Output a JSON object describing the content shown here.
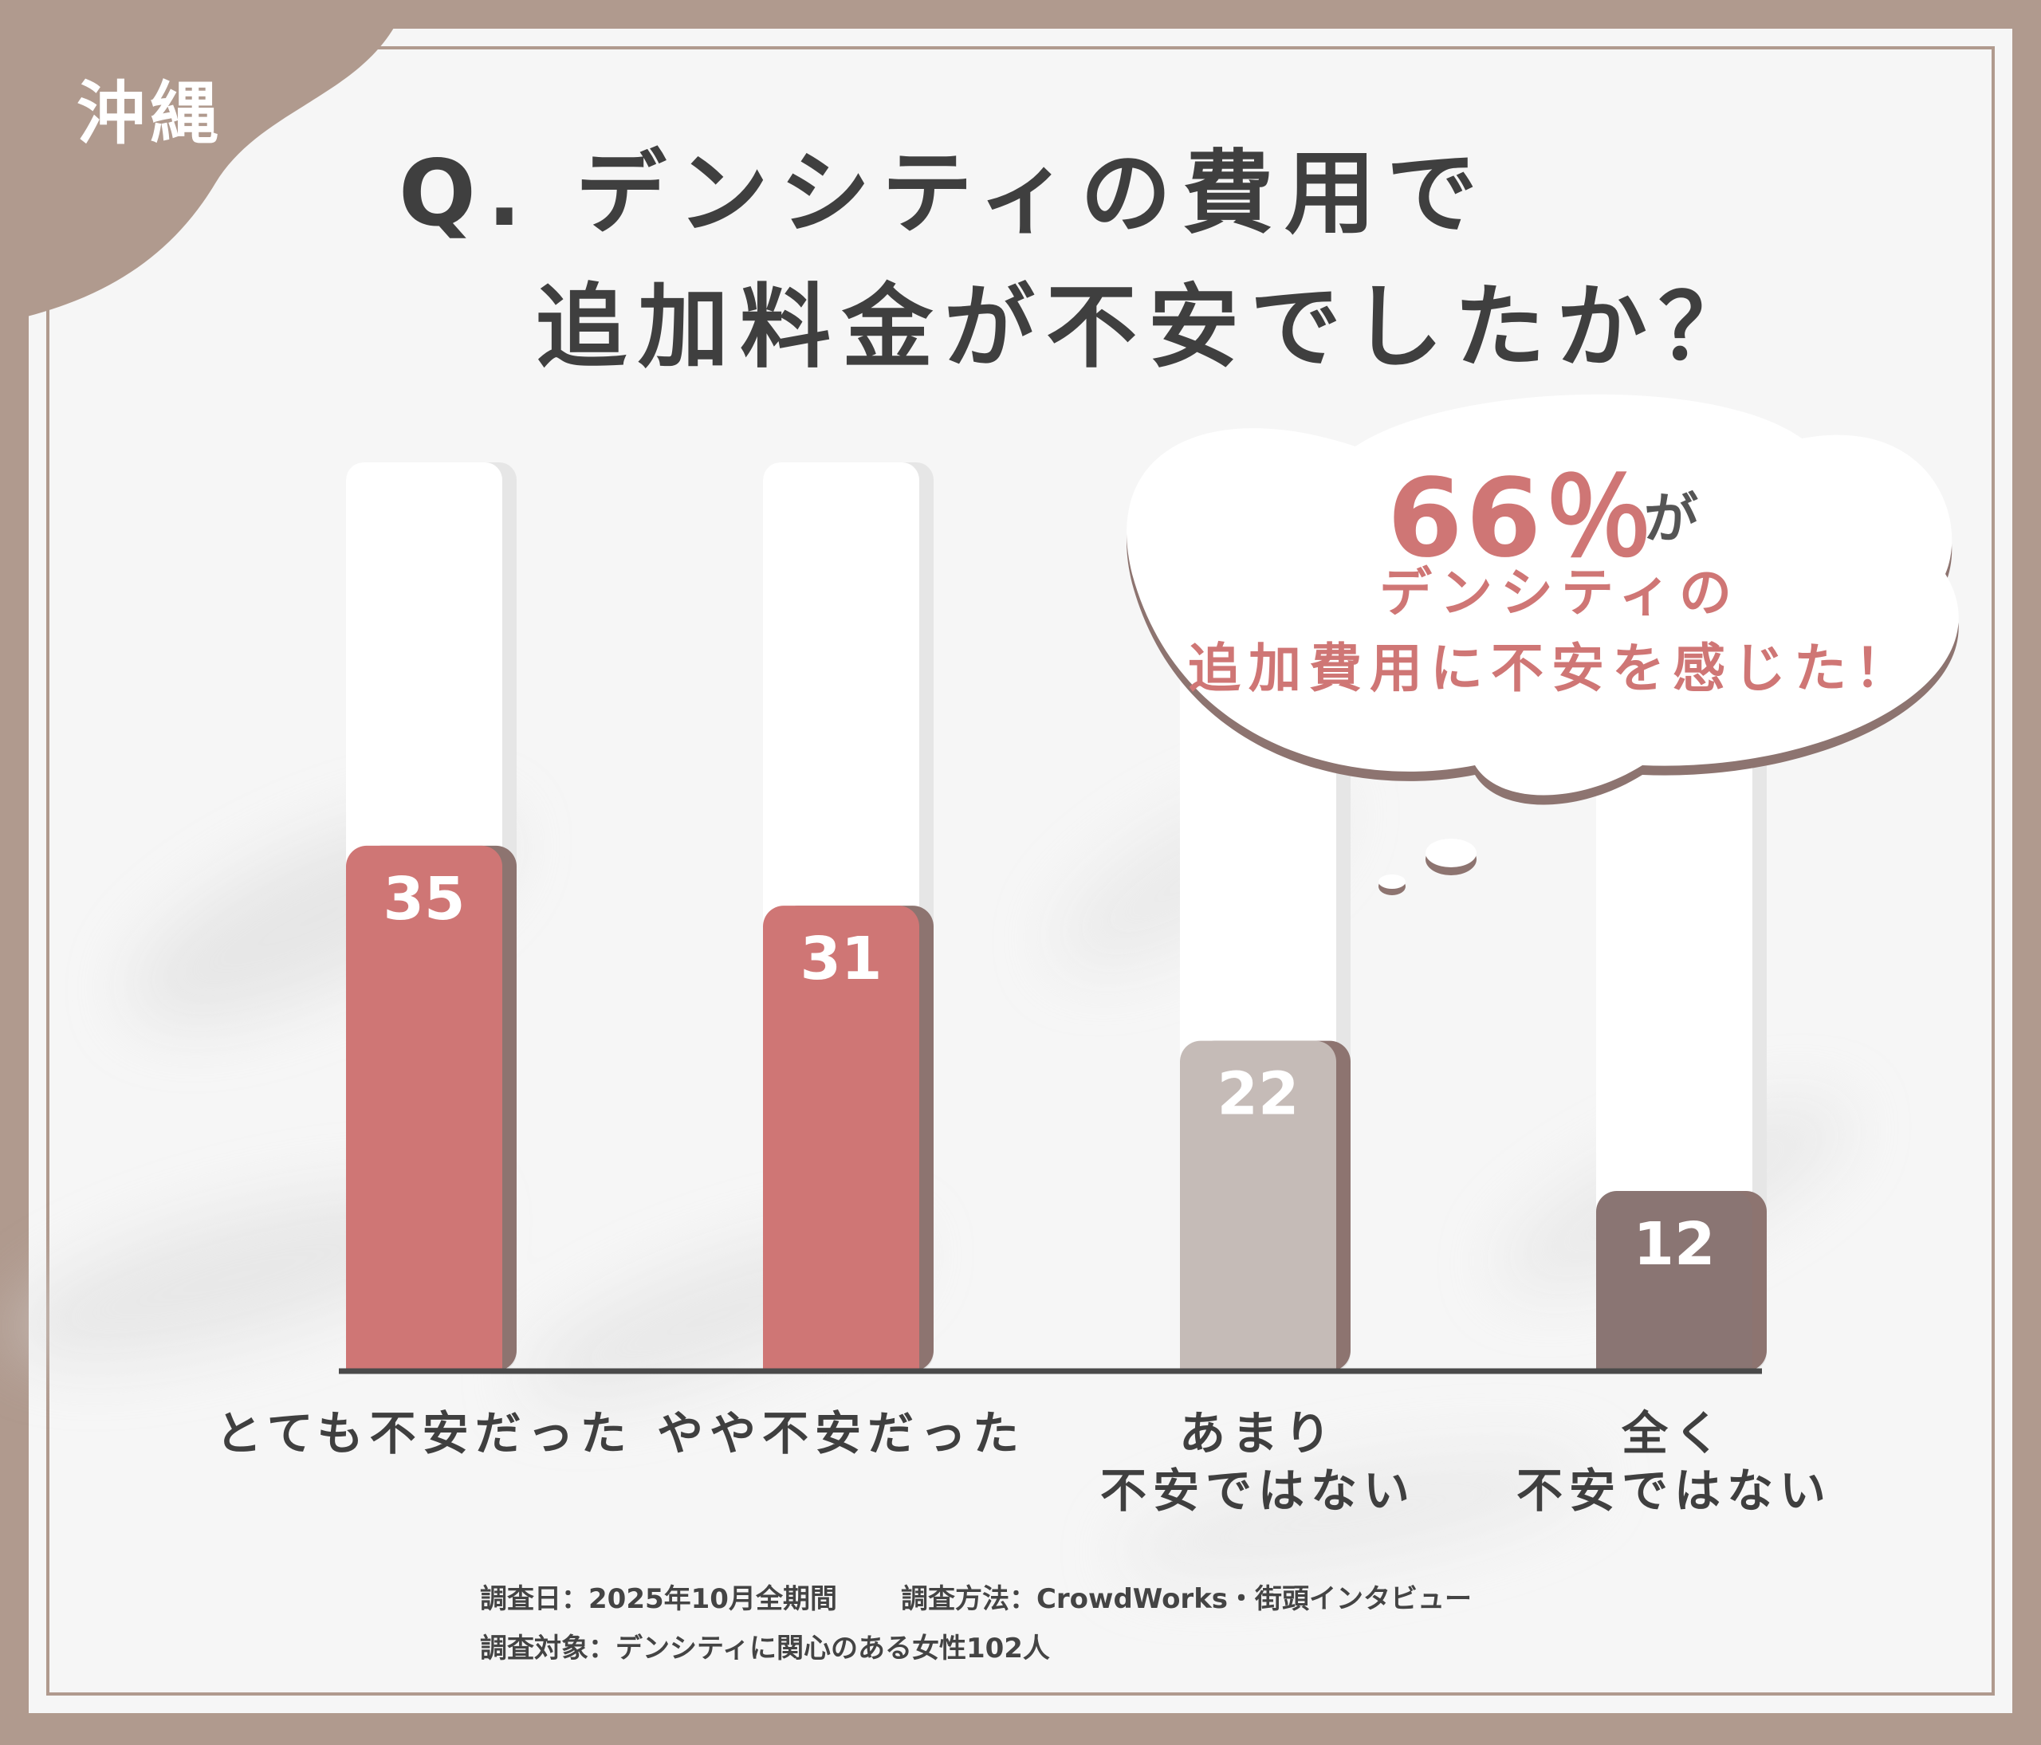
{
  "region_label": "沖縄",
  "title": {
    "line1": "Q. デンシティの費用で",
    "line2": "追加料金が不安でしたか？"
  },
  "callout": {
    "percent": "66％",
    "particle": "が",
    "line1": "デンシティの",
    "line2": "追加費用に不安を感じた！"
  },
  "footer": {
    "date": "調査日：2025年10月全期間",
    "method": "調査方法：CrowdWorks・街頭インタビュー",
    "subjects": "調査対象：デンシティに関心のある女性102人"
  },
  "chart_data": {
    "type": "bar",
    "categories": [
      "とても不安だった",
      "やや不安だった",
      "あまり\n不安ではない",
      "全く\n不安ではない"
    ],
    "values": [
      35,
      31,
      22,
      12
    ],
    "ylim": [
      0,
      60
    ],
    "colors": [
      "#cf7675",
      "#cf7675",
      "#c5bbb7",
      "#8a7573"
    ],
    "grid": false,
    "legend": "none"
  },
  "colors": {
    "frame": "#b09a8e",
    "accent": "#cf7675",
    "text": "#3f3f3f",
    "bar_shadow": "#8d7470",
    "background": "#f6f6f6"
  }
}
